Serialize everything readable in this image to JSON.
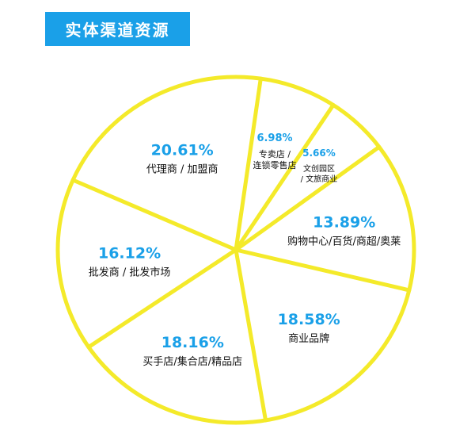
{
  "title": "实体渠道资源",
  "colors": {
    "title_bg": "#1aa0e8",
    "line": "#f4ea2a",
    "pct_text": "#1aa0e8",
    "label_text": "#111111"
  },
  "chart_data": {
    "type": "pie",
    "title": "实体渠道资源",
    "unit": "%",
    "slices": [
      {
        "name": "专卖店 / 连锁零售店",
        "label_lines": [
          "专卖店 /",
          "连锁零售店"
        ],
        "value": 6.98,
        "value_label": "6.98%"
      },
      {
        "name": "文创园区 / 文旅商业",
        "label_lines": [
          "文创园区",
          "/ 文旅商业"
        ],
        "value": 5.66,
        "value_label": "5.66%"
      },
      {
        "name": "购物中心/百货/商超/奥莱",
        "label_lines": [
          "购物中心/百货/商超/奥莱"
        ],
        "value": 13.89,
        "value_label": "13.89%"
      },
      {
        "name": "商业品牌",
        "label_lines": [
          "商业品牌"
        ],
        "value": 18.58,
        "value_label": "18.58%"
      },
      {
        "name": "买手店/集合店/精品店",
        "label_lines": [
          "买手店/集合店/精品店"
        ],
        "value": 18.16,
        "value_label": "18.16%"
      },
      {
        "name": "批发商 / 批发市场",
        "label_lines": [
          "批发商 / 批发市场"
        ],
        "value": 16.12,
        "value_label": "16.12%"
      },
      {
        "name": "代理商 / 加盟商",
        "label_lines": [
          "代理商 / 加盟商"
        ],
        "value": 20.61,
        "value_label": "20.61%"
      }
    ]
  }
}
